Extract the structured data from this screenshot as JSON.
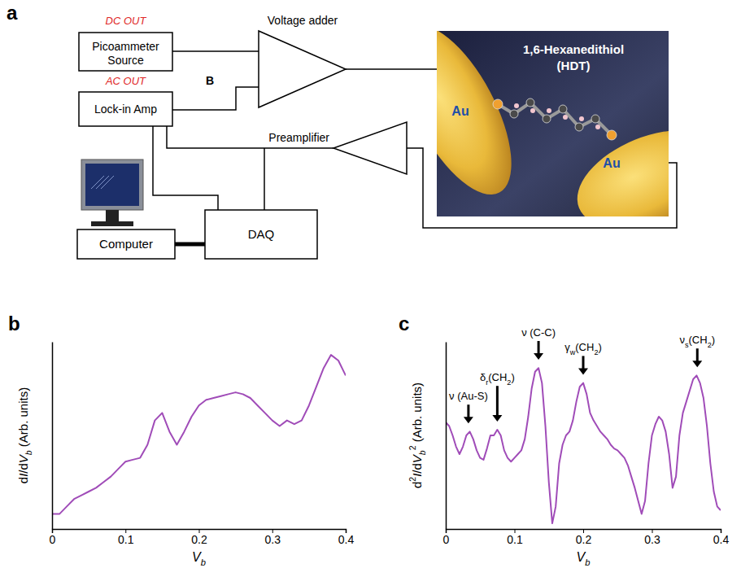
{
  "diagram": {
    "panel_label": "a",
    "nodes": {
      "picoammeter": "Picoammeter Source",
      "lockin": "Lock-in Amp",
      "computer": "Computer",
      "daq": "DAQ",
      "adder": "Voltage adder",
      "preamp": "Preamplifier"
    },
    "signals": {
      "dc": "DC OUT",
      "ac": "AC OUT",
      "node": "B"
    },
    "molecule": {
      "name": "1,6-Hexanedithiol",
      "abbreviation": "(HDT)",
      "electrodes": [
        "Au",
        "Au"
      ]
    }
  },
  "chart_data": [
    {
      "type": "line",
      "panel_label": "b",
      "x_label": [
        {
          "text": "V",
          "italic": true
        },
        {
          "text": "b",
          "sub": true,
          "italic": true
        }
      ],
      "y_label": [
        {
          "text": "d"
        },
        {
          "text": "I",
          "italic": true
        },
        {
          "text": "/d"
        },
        {
          "text": "V",
          "italic": true
        },
        {
          "text": "b",
          "sub": true,
          "italic": true
        },
        {
          "text": " (Arb. units)"
        }
      ],
      "x": [
        0,
        0.01,
        0.02,
        0.03,
        0.04,
        0.05,
        0.06,
        0.07,
        0.08,
        0.09,
        0.1,
        0.11,
        0.12,
        0.13,
        0.14,
        0.15,
        0.16,
        0.17,
        0.18,
        0.19,
        0.2,
        0.21,
        0.22,
        0.23,
        0.24,
        0.25,
        0.26,
        0.27,
        0.28,
        0.29,
        0.3,
        0.31,
        0.32,
        0.33,
        0.34,
        0.35,
        0.36,
        0.37,
        0.38,
        0.39,
        0.4
      ],
      "series": [
        {
          "color": "#a04cb8",
          "values": [
            0.08,
            0.08,
            0.12,
            0.16,
            0.18,
            0.2,
            0.22,
            0.25,
            0.28,
            0.32,
            0.36,
            0.37,
            0.38,
            0.45,
            0.58,
            0.62,
            0.52,
            0.45,
            0.52,
            0.6,
            0.66,
            0.69,
            0.7,
            0.71,
            0.72,
            0.73,
            0.72,
            0.7,
            0.66,
            0.62,
            0.58,
            0.55,
            0.58,
            0.56,
            0.58,
            0.66,
            0.76,
            0.86,
            0.93,
            0.9,
            0.82
          ]
        }
      ],
      "xlim": [
        0,
        0.4
      ],
      "xticks": [
        0,
        0.1,
        0.2,
        0.3,
        0.4
      ],
      "ylim": [
        0,
        1
      ],
      "tick_labels": "x"
    },
    {
      "type": "line",
      "panel_label": "c",
      "x_label": [
        {
          "text": "V",
          "italic": true
        },
        {
          "text": "b",
          "sub": true,
          "italic": true
        }
      ],
      "y_label": [
        {
          "text": "d"
        },
        {
          "text": "2",
          "sup": true
        },
        {
          "text": "I",
          "italic": true
        },
        {
          "text": "/d"
        },
        {
          "text": "V",
          "italic": true
        },
        {
          "text": "b",
          "sub": true,
          "italic": true
        },
        {
          "text": "2",
          "sup": true
        },
        {
          "text": " (Arb. units)"
        }
      ],
      "x": [
        0,
        0.005,
        0.01,
        0.015,
        0.02,
        0.025,
        0.03,
        0.035,
        0.04,
        0.045,
        0.05,
        0.055,
        0.06,
        0.065,
        0.07,
        0.075,
        0.08,
        0.085,
        0.09,
        0.095,
        0.1,
        0.105,
        0.11,
        0.115,
        0.12,
        0.125,
        0.13,
        0.135,
        0.14,
        0.145,
        0.15,
        0.155,
        0.16,
        0.165,
        0.17,
        0.175,
        0.18,
        0.185,
        0.19,
        0.195,
        0.2,
        0.205,
        0.21,
        0.215,
        0.22,
        0.225,
        0.23,
        0.235,
        0.24,
        0.245,
        0.25,
        0.255,
        0.26,
        0.265,
        0.27,
        0.275,
        0.28,
        0.285,
        0.29,
        0.295,
        0.3,
        0.305,
        0.31,
        0.315,
        0.32,
        0.325,
        0.33,
        0.335,
        0.34,
        0.345,
        0.35,
        0.355,
        0.36,
        0.365,
        0.37,
        0.375,
        0.38,
        0.385,
        0.39,
        0.395,
        0.4
      ],
      "series": [
        {
          "color": "#a04cb8",
          "values": [
            0.57,
            0.55,
            0.5,
            0.44,
            0.4,
            0.44,
            0.5,
            0.52,
            0.48,
            0.42,
            0.38,
            0.37,
            0.43,
            0.5,
            0.5,
            0.53,
            0.5,
            0.42,
            0.38,
            0.36,
            0.38,
            0.4,
            0.42,
            0.48,
            0.6,
            0.75,
            0.84,
            0.86,
            0.78,
            0.55,
            0.25,
            0.03,
            0.12,
            0.35,
            0.45,
            0.5,
            0.52,
            0.58,
            0.68,
            0.76,
            0.78,
            0.72,
            0.62,
            0.58,
            0.55,
            0.52,
            0.5,
            0.48,
            0.45,
            0.43,
            0.42,
            0.4,
            0.38,
            0.34,
            0.28,
            0.22,
            0.15,
            0.08,
            0.15,
            0.35,
            0.5,
            0.56,
            0.6,
            0.58,
            0.52,
            0.4,
            0.22,
            0.28,
            0.5,
            0.62,
            0.68,
            0.74,
            0.8,
            0.82,
            0.78,
            0.7,
            0.55,
            0.35,
            0.2,
            0.12,
            0.1
          ]
        }
      ],
      "xlim": [
        0,
        0.4
      ],
      "xticks": [
        0,
        0.1,
        0.2,
        0.3,
        0.4
      ],
      "ylim": [
        0,
        1
      ],
      "tick_labels": "x",
      "annotations": [
        {
          "x": 0.033,
          "y": 0.56,
          "text": [
            {
              "text": "ν (Au-S)"
            }
          ]
        },
        {
          "x": 0.075,
          "y": 0.57,
          "text": [
            {
              "text": "δ"
            },
            {
              "text": "r",
              "sub": true
            },
            {
              "text": "(CH"
            },
            {
              "text": "2",
              "sub": true
            },
            {
              "text": ")"
            }
          ]
        },
        {
          "x": 0.135,
          "y": 0.9,
          "text": [
            {
              "text": "ν (C-C)"
            }
          ]
        },
        {
          "x": 0.2,
          "y": 0.82,
          "text": [
            {
              "text": "γ"
            },
            {
              "text": "w",
              "sub": true
            },
            {
              "text": "(CH"
            },
            {
              "text": "2",
              "sub": true
            },
            {
              "text": ")"
            }
          ]
        },
        {
          "x": 0.366,
          "y": 0.86,
          "text": [
            {
              "text": "ν"
            },
            {
              "text": "s",
              "sub": true
            },
            {
              "text": "(CH"
            },
            {
              "text": "2",
              "sub": true
            },
            {
              "text": ")"
            }
          ]
        }
      ]
    }
  ]
}
